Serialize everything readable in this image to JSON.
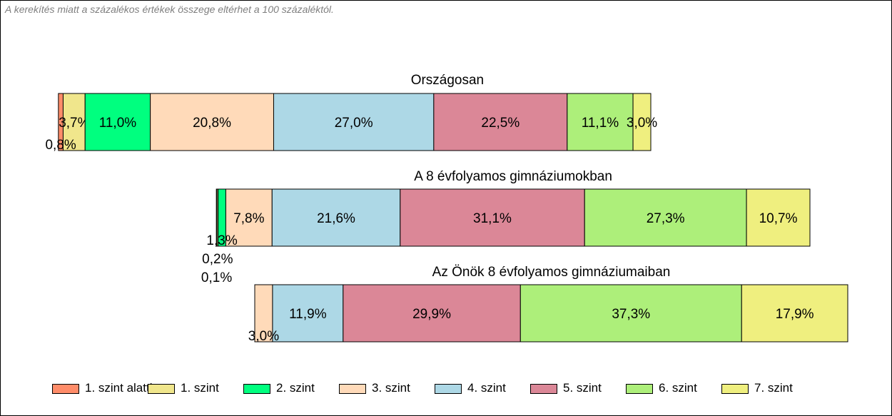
{
  "note": "A kerekítés miatt a  százalékos értékek összege eltérhet a 100 százaléktól.",
  "chart_data": {
    "type": "bar",
    "orientation": "horizontal",
    "stacked": true,
    "percent": true,
    "categories": [
      "1. szint alatti",
      "1. szint",
      "2. szint",
      "3. szint",
      "4. szint",
      "5. szint",
      "6. szint",
      "7. szint"
    ],
    "colors": [
      "#ff8c69",
      "#f0e68c",
      "#00ff7f",
      "#ffdab9",
      "#add8e6",
      "#db8797",
      "#adef7a",
      "#efef7f"
    ],
    "legend_position": "bottom",
    "groups": [
      {
        "title": "Országosan",
        "values": [
          0.8,
          3.7,
          11.0,
          20.8,
          27.0,
          22.5,
          11.1,
          3.0
        ],
        "labels": [
          "0,8%",
          "3,7%",
          "11,0%",
          "20,8%",
          "27,0%",
          "22,5%",
          "11,1%",
          "3,0%"
        ]
      },
      {
        "title": "A 8 évfolyamos gimnáziumokban",
        "values": [
          0.1,
          0.2,
          1.3,
          7.8,
          21.6,
          31.1,
          27.3,
          10.7
        ],
        "labels": [
          "0,1%",
          "0,2%",
          "1,3%",
          "7,8%",
          "21,6%",
          "31,1%",
          "27,3%",
          "10,7%"
        ]
      },
      {
        "title": "Az Önök 8 évfolyamos gimnáziumaiban",
        "values": [
          0,
          0,
          0,
          3.0,
          11.9,
          29.9,
          37.3,
          17.9
        ],
        "labels": [
          "",
          "",
          "",
          "3,0%",
          "11,9%",
          "29,9%",
          "37,3%",
          "17,9%"
        ]
      }
    ]
  }
}
